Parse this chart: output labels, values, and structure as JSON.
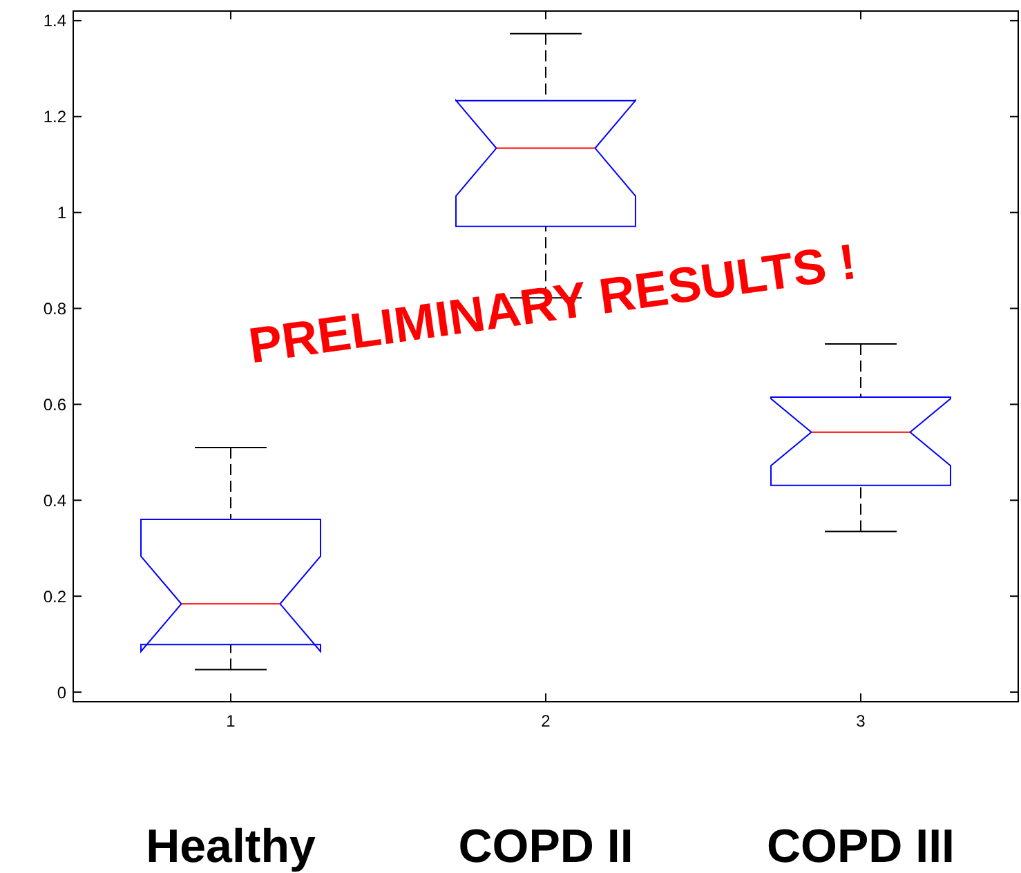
{
  "chart_data": {
    "type": "box",
    "categories": [
      "1",
      "2",
      "3"
    ],
    "boxes": [
      {
        "low": 0.047,
        "q1": 0.099,
        "median": 0.184,
        "q3": 0.36,
        "high": 0.51
      },
      {
        "low": 0.822,
        "q1": 0.971,
        "median": 1.134,
        "q3": 1.233,
        "high": 1.373
      },
      {
        "low": 0.335,
        "q1": 0.431,
        "median": 0.542,
        "q3": 0.615,
        "high": 0.726
      }
    ],
    "color": "#0000ff",
    "ylim": [
      -0.02,
      1.42
    ],
    "yticks": [
      0,
      0.2,
      0.4,
      0.6,
      0.8,
      1,
      1.2,
      1.4
    ],
    "grid": false,
    "annotations": [
      "PRELIMINARY RESULTS !",
      "Healthy",
      "COPD II",
      "COPD III"
    ]
  }
}
